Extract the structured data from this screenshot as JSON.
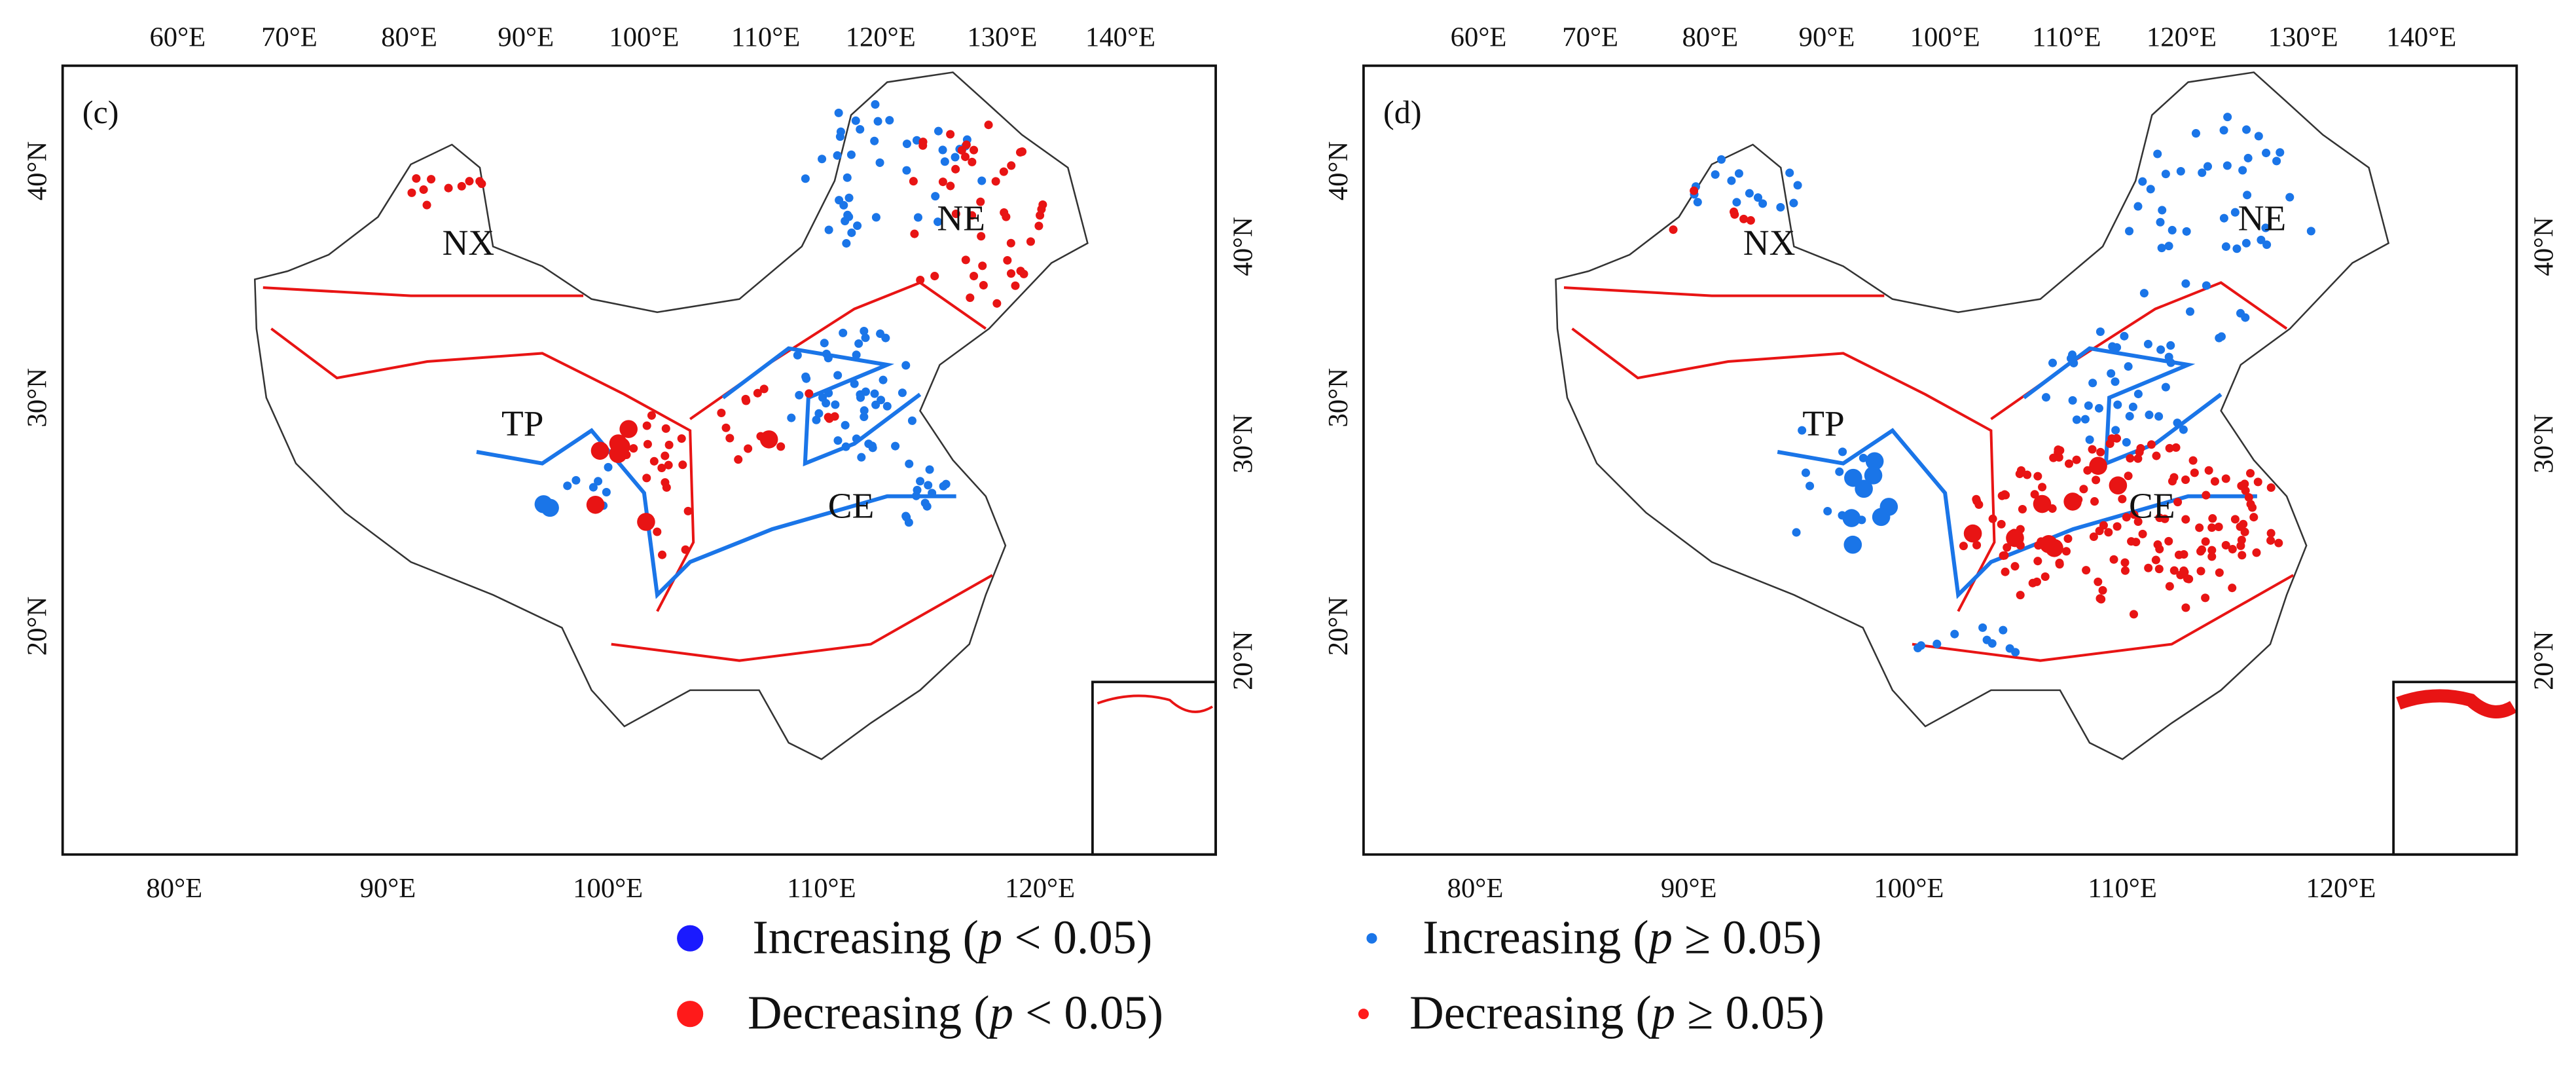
{
  "panels": [
    {
      "label": "(c)",
      "top_ticks": [
        "60°E",
        "70°E",
        "80°E",
        "90°E",
        "100°E",
        "110°E",
        "120°E",
        "130°E",
        "140°E"
      ],
      "bottom_ticks": [
        "80°E",
        "90°E",
        "100°E",
        "110°E",
        "120°E"
      ],
      "left_ticks": [
        "40°N",
        "30°N",
        "20°N"
      ],
      "right_ticks": [
        "40°N",
        "30°N",
        "20°N"
      ],
      "regions": [
        "NX",
        "NE",
        "TP",
        "CE"
      ]
    },
    {
      "label": "(d)",
      "top_ticks": [
        "60°E",
        "70°E",
        "80°E",
        "90°E",
        "100°E",
        "110°E",
        "120°E",
        "130°E",
        "140°E"
      ],
      "bottom_ticks": [
        "80°E",
        "90°E",
        "100°E",
        "110°E",
        "120°E"
      ],
      "left_ticks": [
        "40°N",
        "30°N",
        "20°N"
      ],
      "right_ticks": [
        "40°N",
        "30°N",
        "20°N"
      ],
      "regions": [
        "NX",
        "NE",
        "TP",
        "CE"
      ]
    }
  ],
  "legend": [
    {
      "text": "Increasing (",
      "italic": "p",
      "rest": " < 0.05)"
    },
    {
      "text": "Increasing (",
      "italic": "p",
      "rest": " ≥ 0.05)"
    },
    {
      "text": "Decreasing (",
      "italic": "p",
      "rest": " < 0.05)"
    },
    {
      "text": "Decreasing (",
      "italic": "p",
      "rest": " ≥ 0.05)"
    }
  ]
}
